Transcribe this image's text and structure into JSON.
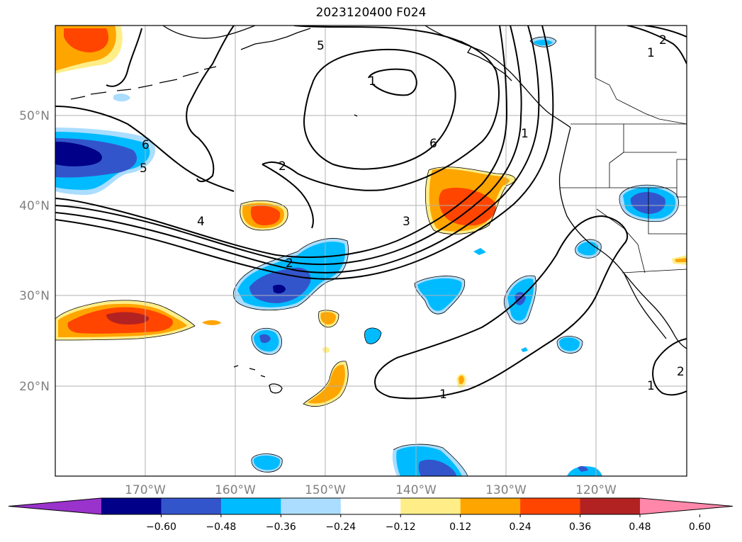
{
  "title": "2023120400 F024",
  "lat_labels": [
    "50°N",
    "40°N",
    "30°N",
    "20°N"
  ],
  "lon_labels": [
    "170°W",
    "160°W",
    "150°W",
    "140°W",
    "130°W",
    "120°W"
  ],
  "colorbar": {
    "colors": [
      "#9933cc",
      "#000088",
      "#3355cc",
      "#00bbff",
      "#aaddff",
      "#ffffff",
      "#ffee88",
      "#ffa500",
      "#ff4500",
      "#b22222",
      "#ff88aa"
    ],
    "labels": [
      "−0.60",
      "−0.48",
      "−0.36",
      "−0.24",
      "−0.12",
      "0.12",
      "0.24",
      "0.36",
      "0.48",
      "0.60"
    ]
  },
  "contour_labels": [
    "5",
    "1",
    "6",
    "2",
    "6",
    "5",
    "1",
    "4",
    "3",
    "2",
    "1",
    "2",
    "1",
    "1",
    "2"
  ]
}
